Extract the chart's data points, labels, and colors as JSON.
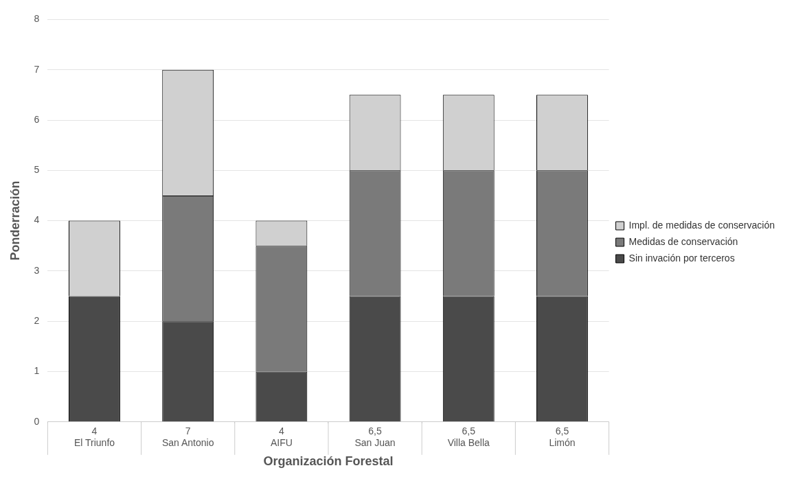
{
  "chart_data": {
    "type": "bar",
    "stacked": true,
    "xlabel": "Organización Forestal",
    "ylabel": "Ponderración",
    "categories": [
      "El Triunfo",
      "San Antonio",
      "AIFU",
      "San Juan",
      "Villa Bella",
      "Limón"
    ],
    "series": [
      {
        "name": "Sin invación por terceros",
        "color": "#4a4a4a",
        "values": [
          2.5,
          2,
          1,
          2.5,
          2.5,
          2.5
        ]
      },
      {
        "name": "Medidas de conservación",
        "color": "#7a7a7a",
        "values": [
          0,
          2.5,
          2.5,
          2.5,
          2.5,
          2.5
        ]
      },
      {
        "name": "Impl. de medidas de conservación",
        "color": "#d0d0d0",
        "values": [
          1.5,
          2.5,
          0.5,
          1.5,
          1.5,
          1.5
        ]
      }
    ],
    "totals": [
      "4",
      "7",
      "4",
      "6,5",
      "6,5",
      "6,5"
    ],
    "ylim": [
      0,
      8
    ],
    "yticks": [
      0,
      1,
      2,
      3,
      4,
      5,
      6,
      7,
      8
    ],
    "grid": "y",
    "legend": "right"
  }
}
